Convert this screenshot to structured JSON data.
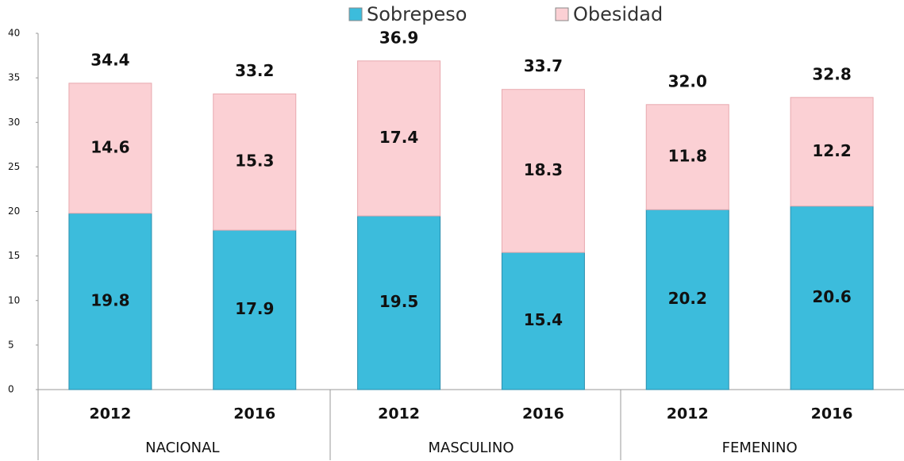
{
  "chart_data": {
    "type": "stacked_bar",
    "categories": [
      "2012",
      "2016",
      "2012",
      "2016",
      "2012",
      "2016"
    ],
    "groups": [
      "NACIONAL",
      "MASCULINO",
      "FEMENINO"
    ],
    "series": [
      {
        "name": "Sobrepeso",
        "color": "#3cbcdc",
        "values": [
          19.8,
          17.9,
          19.5,
          15.4,
          20.2,
          20.6
        ]
      },
      {
        "name": "Obesidad",
        "color": "#fbd0d4",
        "values": [
          14.6,
          15.3,
          17.4,
          18.3,
          11.8,
          12.2
        ]
      }
    ],
    "totals": [
      34.4,
      33.2,
      36.9,
      33.7,
      32,
      32.8
    ],
    "total_labels": [
      "34.4",
      "33.2",
      "36.9",
      "33.7",
      "32.0",
      "32.8"
    ],
    "ylim": [
      0,
      40
    ],
    "yticks": [
      0,
      5,
      10,
      15,
      20,
      25,
      30,
      35,
      40
    ]
  }
}
